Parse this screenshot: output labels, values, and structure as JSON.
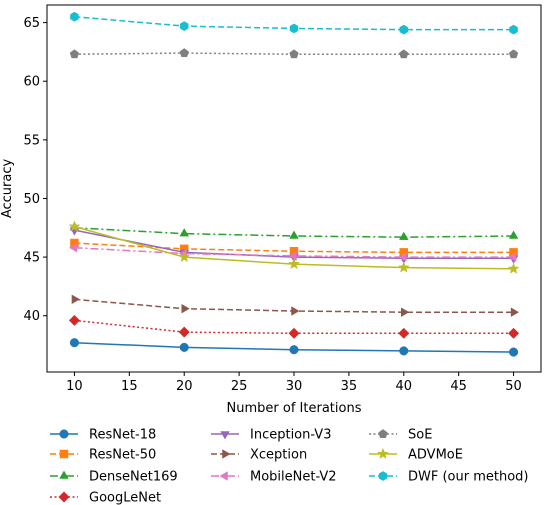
{
  "chart_data": {
    "type": "line",
    "title": "",
    "xlabel": "Number of Iterations",
    "ylabel": "Accuracy",
    "xlim": [
      7.5,
      52.5
    ],
    "ylim": [
      35.2,
      66.5
    ],
    "xticks": [
      10,
      15,
      20,
      25,
      30,
      35,
      40,
      45,
      50
    ],
    "yticks": [
      40,
      45,
      50,
      55,
      60,
      65
    ],
    "grid": false,
    "legend_position": "bottom, three columns",
    "x": [
      10,
      20,
      30,
      40,
      50
    ],
    "series": [
      {
        "name": "ResNet-18",
        "values": [
          37.7,
          37.3,
          37.1,
          37.0,
          36.9
        ],
        "color": "#1f77b4",
        "linestyle": "solid",
        "marker": "circle"
      },
      {
        "name": "ResNet-50",
        "values": [
          46.2,
          45.7,
          45.5,
          45.4,
          45.4
        ],
        "color": "#ff7f0e",
        "linestyle": "dashed",
        "marker": "square"
      },
      {
        "name": "DenseNet169",
        "values": [
          47.5,
          47.0,
          46.8,
          46.7,
          46.8
        ],
        "color": "#2ca02c",
        "linestyle": "dashdot",
        "marker": "triangle-up"
      },
      {
        "name": "GoogLeNet",
        "values": [
          39.6,
          38.6,
          38.5,
          38.5,
          38.5
        ],
        "color": "#d62728",
        "linestyle": "dotted",
        "marker": "diamond"
      },
      {
        "name": "Inception-V3",
        "values": [
          47.3,
          45.4,
          45.0,
          44.9,
          44.9
        ],
        "color": "#9467bd",
        "linestyle": "solid",
        "marker": "triangle-down"
      },
      {
        "name": "Xception",
        "values": [
          41.4,
          40.6,
          40.4,
          40.3,
          40.3
        ],
        "color": "#8c564b",
        "linestyle": "dashed",
        "marker": "triangle-right"
      },
      {
        "name": "MobileNet-V2",
        "values": [
          45.8,
          45.3,
          45.1,
          45.0,
          45.0
        ],
        "color": "#e377c2",
        "linestyle": "dashdot",
        "marker": "triangle-left"
      },
      {
        "name": "SoE",
        "values": [
          62.3,
          62.4,
          62.3,
          62.3,
          62.3
        ],
        "color": "#7f7f7f",
        "linestyle": "dotted",
        "marker": "pentagon"
      },
      {
        "name": "ADVMoE",
        "values": [
          47.6,
          45.0,
          44.4,
          44.1,
          44.0
        ],
        "color": "#bcbd22",
        "linestyle": "solid",
        "marker": "star"
      },
      {
        "name": "DWF (our method)",
        "values": [
          65.5,
          64.7,
          64.5,
          64.4,
          64.4
        ],
        "color": "#17becf",
        "linestyle": "dashed",
        "marker": "hexagon"
      }
    ]
  }
}
